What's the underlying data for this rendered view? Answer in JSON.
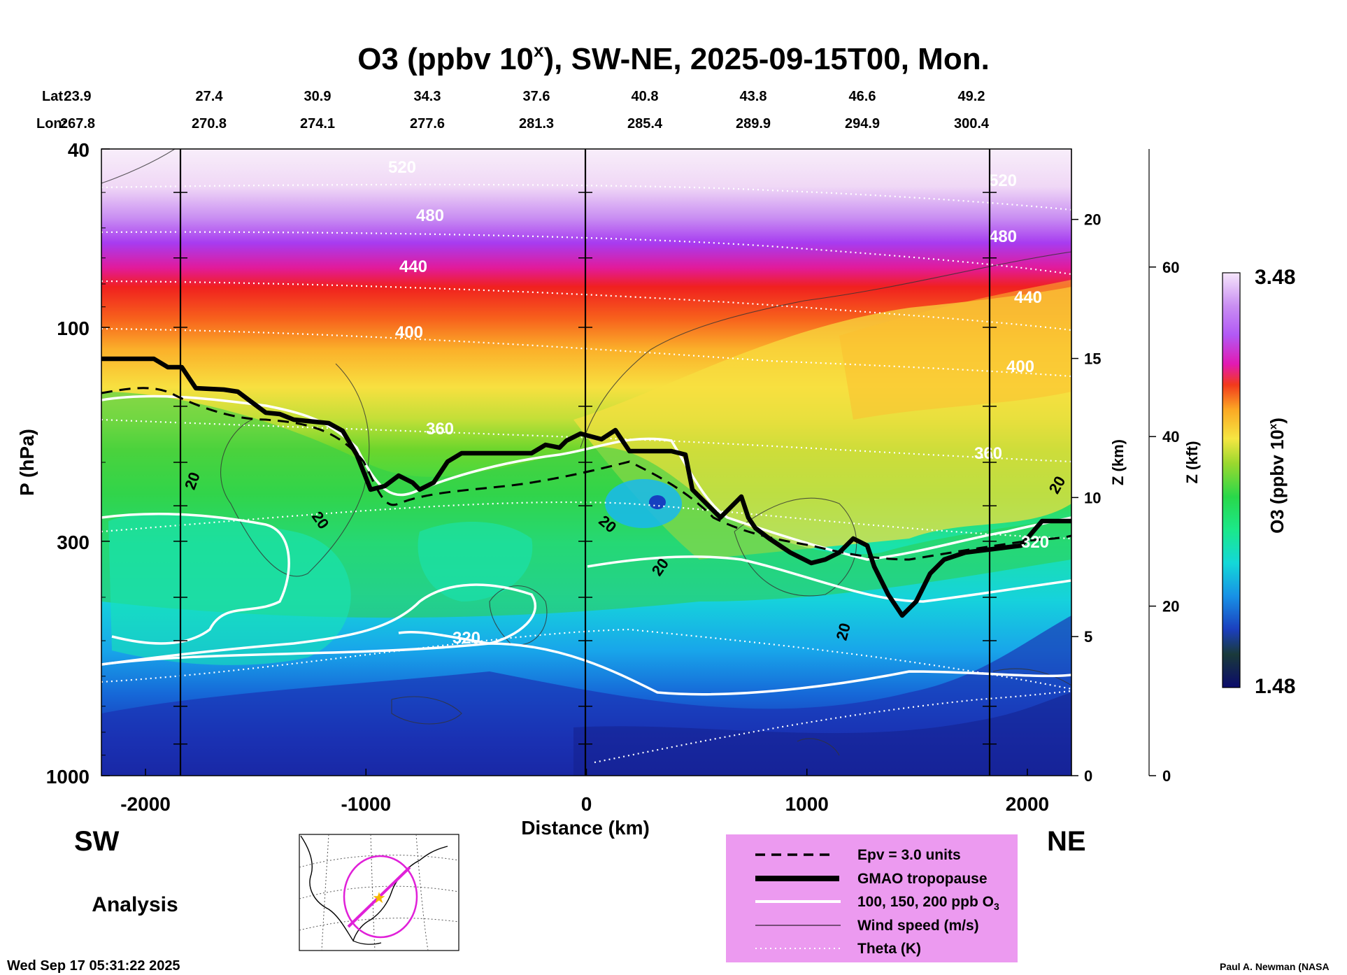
{
  "title": {
    "main": "O3 (ppbv 10",
    "sup": "x",
    "rest": "), SW-NE, 2025-09-15T00, Mon."
  },
  "coords": {
    "lat_label": "Lat:",
    "lon_label": "Lon:",
    "lat": [
      "23.9",
      "27.4",
      "30.9",
      "34.3",
      "37.6",
      "40.8",
      "43.8",
      "46.6",
      "49.2"
    ],
    "lon": [
      "267.8",
      "270.8",
      "274.1",
      "277.6",
      "281.3",
      "285.4",
      "289.9",
      "294.9",
      "300.4"
    ]
  },
  "chart_data": {
    "type": "heatmap",
    "x": {
      "label": "Distance (km)",
      "range": [
        -2200,
        2200
      ],
      "ticks": [
        "-2000",
        "-1000",
        "0",
        "1000",
        "2000"
      ]
    },
    "y": {
      "label": "P (hPa)",
      "scale": "log",
      "range": [
        1000,
        40
      ],
      "ticks": [
        "40",
        "100",
        "300",
        "1000"
      ]
    },
    "z_km": {
      "label": "Z (km)",
      "ticks": [
        "0",
        "5",
        "10",
        "15",
        "20"
      ]
    },
    "z_kft": {
      "label": "Z (kft)",
      "ticks": [
        "0",
        "20",
        "40",
        "60"
      ]
    },
    "colorbar": {
      "label_main": "O3 (ppbv 10",
      "label_sup": "x",
      "label_end": ")",
      "min": "1.48",
      "max": "3.48",
      "colors": [
        "#0b0b6b",
        "#1c1c96",
        "#1b3fbe",
        "#1666d6",
        "#1891e6",
        "#19b8ee",
        "#13d8d8",
        "#10e6b4",
        "#1be88a",
        "#29d84a",
        "#5ad42a",
        "#9ad82e",
        "#cde03a",
        "#f5e642",
        "#fbd12e",
        "#fba824",
        "#f7701c",
        "#f23a1c",
        "#ef1a3c",
        "#e21ab2",
        "#c634ee",
        "#b259f5",
        "#c98ef2",
        "#e1bff6",
        "#f6e6fb"
      ]
    },
    "theta_labels": [
      "520",
      "480",
      "440",
      "400",
      "360",
      "320",
      "320",
      "520",
      "480",
      "440",
      "400",
      "360"
    ],
    "wind_labels": [
      "20",
      "20",
      "20",
      "20",
      "20",
      "20"
    ],
    "direction_left": "SW",
    "direction_right": "NE"
  },
  "legend": {
    "items": [
      {
        "label": "Epv = 3.0 units"
      },
      {
        "label": "GMAO tropopause"
      },
      {
        "label": "100, 150, 200 ppb O",
        "sub": "3"
      },
      {
        "label": "Wind speed (m/s)"
      },
      {
        "label": "Theta (K)"
      }
    ]
  },
  "analysis_label": "Analysis",
  "timestamp": "Wed Sep 17 05:31:22 2025",
  "credit": "Paul A. Newman (NASA"
}
